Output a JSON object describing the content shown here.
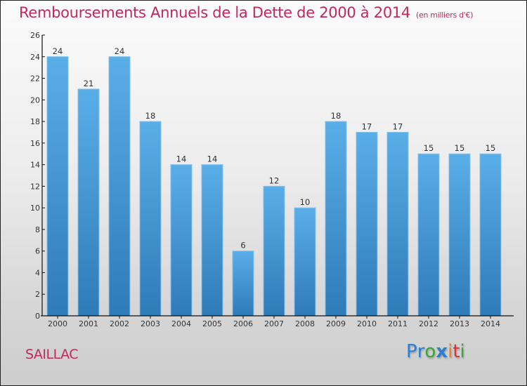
{
  "header": {
    "title": "Remboursements Annuels de la Dette de 2000 à 2014",
    "unit": "(en milliers d'€)"
  },
  "footer": {
    "commune": "SAILLAC",
    "logo": {
      "letters": [
        {
          "ch": "P",
          "color": "#2a7fd0"
        },
        {
          "ch": "r",
          "color": "#2a7fd0"
        },
        {
          "ch": "o",
          "color": "#3aa63a"
        },
        {
          "ch": "x",
          "color": "#2a7fd0"
        },
        {
          "ch": "i",
          "color": "#f08020"
        },
        {
          "ch": "t",
          "color": "#e03030"
        },
        {
          "ch": "i",
          "color": "#3aa63a"
        }
      ]
    }
  },
  "colors": {
    "title": "#c0285e",
    "bar_top": "#5aaee8",
    "bar_bottom": "#2e7bb8",
    "bar_edge": "#7ec3f2"
  },
  "chart_data": {
    "type": "bar",
    "title": "Remboursements Annuels de la Dette de 2000 à 2014 (en milliers d'€)",
    "xlabel": "",
    "ylabel": "",
    "categories": [
      "2000",
      "2001",
      "2002",
      "2003",
      "2004",
      "2005",
      "2006",
      "2007",
      "2008",
      "2009",
      "2010",
      "2011",
      "2012",
      "2013",
      "2014"
    ],
    "values": [
      24,
      21,
      24,
      18,
      14,
      14,
      6,
      12,
      10,
      18,
      17,
      17,
      15,
      15,
      15
    ],
    "ylim": [
      0,
      26
    ],
    "yticks": [
      0,
      2,
      4,
      6,
      8,
      10,
      12,
      14,
      16,
      18,
      20,
      22,
      24,
      26
    ],
    "grid": false,
    "data_labels": true
  }
}
